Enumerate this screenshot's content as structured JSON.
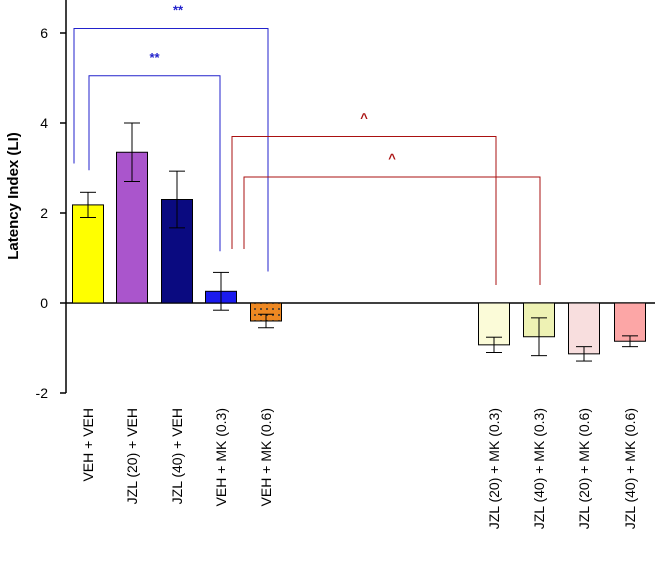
{
  "chart_data": {
    "type": "bar",
    "ylabel": "Latency Index (LI)",
    "xlabel": "",
    "ylim": [
      -2,
      6.8
    ],
    "yticks": [
      -2,
      0,
      2,
      4,
      6
    ],
    "categories": [
      "VEH + VEH",
      "JZL (20) + VEH",
      "JZL (40) + VEH",
      "VEH + MK (0.3)",
      "VEH + MK (0.6)",
      "JZL (20) + MK (0.3)",
      "JZL (40) + MK (0.3)",
      "JZL (20) + MK (0.6)",
      "JZL (40) + MK (0.6)"
    ],
    "values": [
      2.18,
      3.35,
      2.3,
      0.26,
      -0.4,
      -0.93,
      -0.75,
      -1.13,
      -0.85
    ],
    "errors": [
      0.28,
      0.65,
      0.63,
      0.42,
      0.15,
      0.17,
      0.42,
      0.16,
      0.12
    ],
    "colors": [
      "#ffff00",
      "#aa55cc",
      "#0a0a80",
      "#1a1aee",
      "#ee8822",
      "#fbfbd8",
      "#eef2b4",
      "#f8dede",
      "#fca6a6"
    ],
    "patterns": [
      "solid",
      "solid",
      "solid",
      "solid",
      "dotted",
      "solid",
      "solid",
      "solid",
      "solid"
    ],
    "significance": [
      {
        "from": 0,
        "to": 4,
        "label": "**",
        "color": "#2222cc",
        "level": 6.1
      },
      {
        "from": 1,
        "to": 3,
        "label": "**",
        "color": "#2222cc",
        "level": 5.05
      },
      {
        "from": 3,
        "to": 5,
        "label": "^",
        "color": "#aa1111",
        "level": 3.7
      },
      {
        "from": 4,
        "to": 6,
        "label": "^",
        "color": "#aa1111",
        "level": 2.8
      }
    ]
  }
}
